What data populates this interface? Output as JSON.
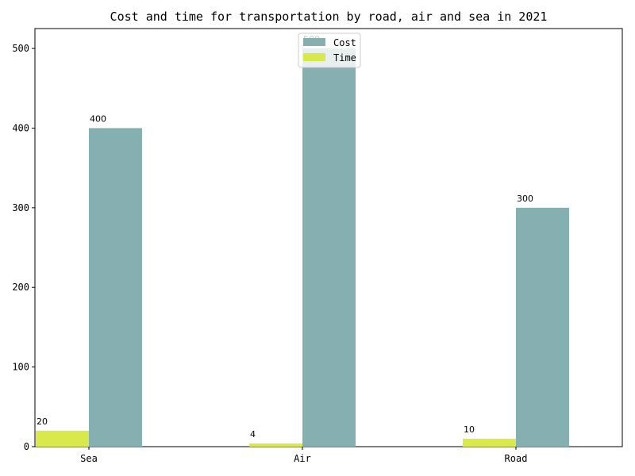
{
  "chart_data": {
    "type": "bar",
    "title": "Cost and time for transportation by road, air and sea in 2021",
    "xlabel": "",
    "ylabel": "",
    "categories": [
      "Sea",
      "Air",
      "Road"
    ],
    "series": [
      {
        "name": "Time",
        "values": [
          20,
          4,
          10
        ],
        "color": "#d9e84a"
      },
      {
        "name": "Cost",
        "values": [
          400,
          500,
          300
        ],
        "color": "#85afb0"
      }
    ],
    "legend_order": [
      "Cost",
      "Time"
    ],
    "yticks": [
      0,
      100,
      200,
      300,
      400,
      500
    ],
    "ylim": [
      0,
      525
    ],
    "grid": false,
    "legend_position": "top-center",
    "data_labels": true
  }
}
